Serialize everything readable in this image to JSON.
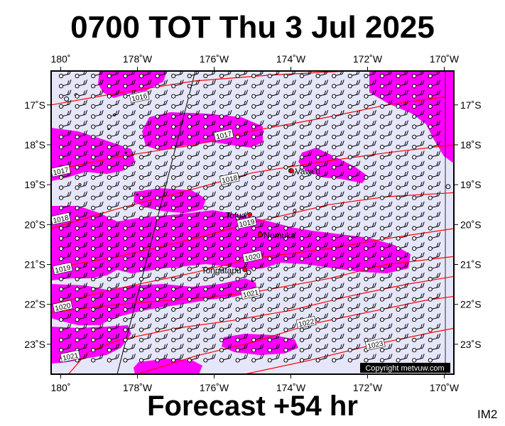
{
  "header": {
    "title": "0700 TOT Thu 3 Jul 2025"
  },
  "footer": {
    "forecast": "Forecast +54 hr",
    "image_id_label": "IM2"
  },
  "copyright": "Copyright metvuw.com",
  "map": {
    "lon_range": [
      -180.25,
      -169.75
    ],
    "lat_range": [
      -16.15,
      -23.75
    ],
    "lon_ticks": [
      {
        "lon": -180,
        "label": "180˚"
      },
      {
        "lon": -178,
        "label": "178˚W"
      },
      {
        "lon": -176,
        "label": "176˚W"
      },
      {
        "lon": -174,
        "label": "174˚W"
      },
      {
        "lon": -172,
        "label": "172˚W"
      },
      {
        "lon": -170,
        "label": "170˚W"
      }
    ],
    "lat_ticks": [
      {
        "lat": -17,
        "label": "17˚S"
      },
      {
        "lat": -18,
        "label": "18˚S"
      },
      {
        "lat": -19,
        "label": "19˚S"
      },
      {
        "lat": -20,
        "label": "20˚S"
      },
      {
        "lat": -21,
        "label": "21˚S"
      },
      {
        "lat": -22,
        "label": "22˚S"
      },
      {
        "lat": -23,
        "label": "23˚S"
      }
    ],
    "colors": {
      "background": "#e6e6fa",
      "rain": "#ff00ff",
      "isobar": "#ff0000",
      "wind": "#000000",
      "place_marker": "#ff0000"
    },
    "places": [
      {
        "name": "Vava'u",
        "lon": -173.98,
        "lat": -18.65
      },
      {
        "name": "Tofua",
        "lon": -175.07,
        "lat": -19.75
      },
      {
        "name": "Nomuka",
        "lon": -174.8,
        "lat": -20.25
      },
      {
        "name": "Tongatapu",
        "lon": -175.2,
        "lat": -21.13
      }
    ],
    "isobars": [
      {
        "label": "1016",
        "label_at": [
          -177.95,
          -16.8
        ],
        "points": [
          [
            -180.25,
            -17.0
          ],
          [
            -178.5,
            -16.7
          ],
          [
            -176.5,
            -16.4
          ],
          [
            -174.5,
            -16.25
          ],
          [
            -172.5,
            -16.15
          ]
        ]
      },
      {
        "label": "1017",
        "label_at": [
          -175.75,
          -17.75
        ],
        "points": [
          [
            -180.25,
            -18.65
          ],
          [
            -178.5,
            -18.3
          ],
          [
            -176.5,
            -18.0
          ],
          [
            -175,
            -17.65
          ],
          [
            -173,
            -17.3
          ],
          [
            -171.5,
            -17.0
          ],
          [
            -170,
            -16.8
          ]
        ]
      },
      {
        "label": "1017",
        "label_at": [
          -180.0,
          -18.65
        ],
        "points": []
      },
      {
        "label": "1018",
        "label_at": [
          -175.6,
          -18.85
        ],
        "points": [
          [
            -180.25,
            -20.1
          ],
          [
            -178.5,
            -19.6
          ],
          [
            -176.5,
            -19.1
          ],
          [
            -175,
            -18.7
          ],
          [
            -173,
            -18.4
          ],
          [
            -171.5,
            -18.2
          ],
          [
            -169.75,
            -18.0
          ]
        ]
      },
      {
        "label": "1018",
        "label_at": [
          -180.0,
          -19.85
        ],
        "points": []
      },
      {
        "label": "1019",
        "label_at": [
          -175.15,
          -19.95
        ],
        "points": [
          [
            -180.25,
            -21.1
          ],
          [
            -178.5,
            -20.8
          ],
          [
            -176.5,
            -20.35
          ],
          [
            -175,
            -19.95
          ],
          [
            -173,
            -19.5
          ],
          [
            -171.5,
            -19.3
          ],
          [
            -169.75,
            -19.2
          ]
        ]
      },
      {
        "label": "1019",
        "label_at": [
          -179.95,
          -21.1
        ],
        "points": []
      },
      {
        "label": "1020",
        "label_at": [
          -175.0,
          -20.8
        ],
        "points": [
          [
            -180.25,
            -22.0
          ],
          [
            -178.5,
            -21.6
          ],
          [
            -176.5,
            -21.2
          ],
          [
            -175,
            -20.85
          ],
          [
            -173,
            -20.6
          ],
          [
            -171.5,
            -20.35
          ],
          [
            -169.75,
            -20.1
          ]
        ]
      },
      {
        "label": "1020",
        "label_at": [
          -179.95,
          -22.05
        ],
        "points": []
      },
      {
        "label": "1021",
        "label_at": [
          -175.05,
          -21.72
        ],
        "points": [
          [
            -180.25,
            -22.2
          ],
          [
            -178.5,
            -22.0
          ],
          [
            -176.5,
            -21.85
          ],
          [
            -175,
            -21.7
          ],
          [
            -173,
            -21.35
          ],
          [
            -171.5,
            -21.0
          ],
          [
            -169.75,
            -20.8
          ]
        ]
      },
      {
        "label": "1021",
        "label_at": [
          -179.75,
          -23.3
        ],
        "points": [
          [
            -179.8,
            -23.75
          ],
          [
            -179.3,
            -23.2
          ],
          [
            -178.5,
            -22.9
          ],
          [
            -177,
            -22.6
          ],
          [
            -175.5,
            -22.4
          ],
          [
            -174,
            -22.15
          ],
          [
            -172.5,
            -21.8
          ],
          [
            -171,
            -21.5
          ],
          [
            -169.75,
            -21.3
          ]
        ]
      },
      {
        "label": "1022",
        "label_at": [
          -173.6,
          -22.45
        ],
        "points": [
          [
            -178.0,
            -23.75
          ],
          [
            -176.5,
            -23.3
          ],
          [
            -175,
            -22.95
          ],
          [
            -173.5,
            -22.5
          ],
          [
            -172,
            -22.2
          ],
          [
            -170.5,
            -21.9
          ],
          [
            -169.75,
            -21.8
          ]
        ]
      },
      {
        "label": "1023",
        "label_at": [
          -171.8,
          -23.0
        ],
        "points": [
          [
            -175.2,
            -23.75
          ],
          [
            -173.5,
            -23.4
          ],
          [
            -171.8,
            -23.0
          ],
          [
            -170.3,
            -22.7
          ],
          [
            -169.75,
            -22.6
          ]
        ]
      }
    ]
  }
}
